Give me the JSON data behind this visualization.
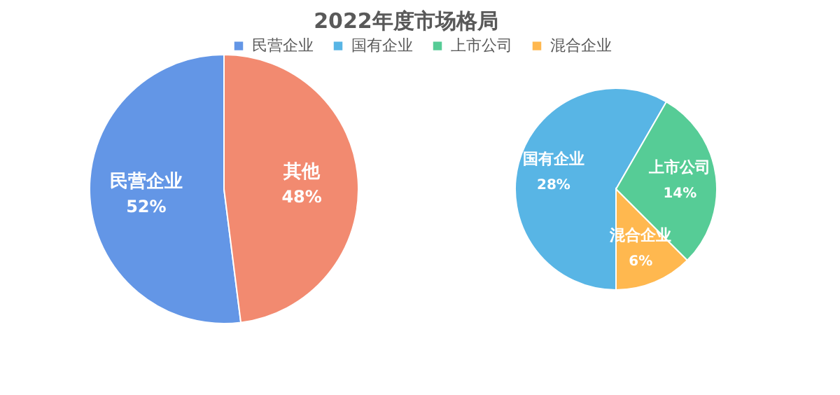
{
  "chart_data": [
    {
      "type": "pie",
      "title": "2022年度市场格局",
      "legend": "top",
      "categories": [
        "民营企业",
        "其他"
      ],
      "values": [
        52,
        48
      ],
      "colors": [
        "#6396e6",
        "#f28a70"
      ],
      "value_labels": [
        "52%",
        "48%"
      ]
    },
    {
      "type": "pie",
      "legend": "top",
      "categories": [
        "国有企业",
        "上市公司",
        "混合企业"
      ],
      "values": [
        28,
        14,
        6
      ],
      "colors": [
        "#58b5e5",
        "#56cc96",
        "#ffb84f"
      ],
      "value_labels": [
        "28%",
        "14%",
        "6%"
      ]
    }
  ]
}
